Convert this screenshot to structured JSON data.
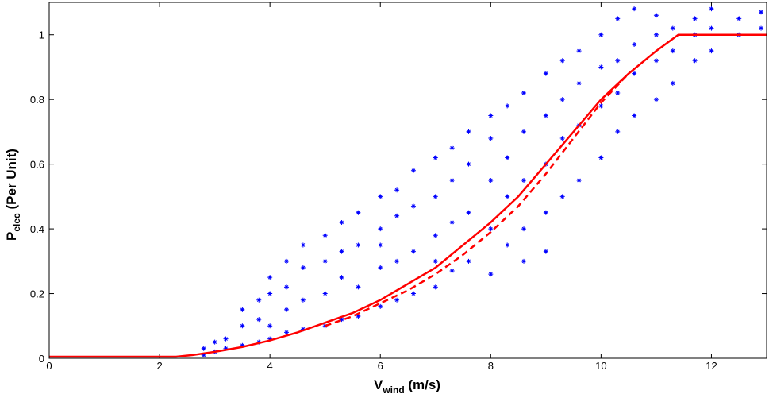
{
  "chart_data": {
    "type": "scatter",
    "xlabel": {
      "main": "V",
      "sub": "wind",
      "rest": " (m/s)"
    },
    "ylabel": {
      "main": "P",
      "sub": "elec",
      "rest": " (Per Unit)"
    },
    "xlim": [
      0,
      13
    ],
    "ylim": [
      0,
      1.1
    ],
    "xticks": [
      0,
      2,
      4,
      6,
      8,
      10,
      12
    ],
    "yticks": [
      0,
      0.2,
      0.4,
      0.6,
      0.8,
      1
    ],
    "color": "#0000ff",
    "x": [
      2.8,
      2.8,
      3.0,
      3.0,
      3.2,
      3.2,
      3.5,
      3.5,
      3.5,
      3.8,
      3.8,
      3.8,
      4.0,
      4.0,
      4.0,
      4.0,
      4.3,
      4.3,
      4.3,
      4.3,
      4.6,
      4.6,
      4.6,
      4.6,
      5.0,
      5.0,
      5.0,
      5.0,
      5.3,
      5.3,
      5.3,
      5.3,
      5.6,
      5.6,
      5.6,
      5.6,
      6.0,
      6.0,
      6.0,
      6.0,
      6.0,
      6.3,
      6.3,
      6.3,
      6.3,
      6.6,
      6.6,
      6.6,
      6.6,
      7.0,
      7.0,
      7.0,
      7.0,
      7.0,
      7.3,
      7.3,
      7.3,
      7.3,
      7.6,
      7.6,
      7.6,
      7.6,
      8.0,
      8.0,
      8.0,
      8.0,
      8.0,
      8.3,
      8.3,
      8.3,
      8.3,
      8.6,
      8.6,
      8.6,
      8.6,
      8.6,
      9.0,
      9.0,
      9.0,
      9.0,
      9.0,
      9.3,
      9.3,
      9.3,
      9.3,
      9.6,
      9.6,
      9.6,
      9.6,
      10.0,
      10.0,
      10.0,
      10.0,
      10.3,
      10.3,
      10.3,
      10.3,
      10.6,
      10.6,
      10.6,
      10.6,
      11.0,
      11.0,
      11.0,
      11.0,
      11.3,
      11.3,
      11.3,
      11.7,
      11.7,
      11.7,
      12.0,
      12.0,
      12.0,
      12.5,
      12.5,
      12.9,
      12.9
    ],
    "values": [
      0.01,
      0.03,
      0.02,
      0.05,
      0.03,
      0.06,
      0.04,
      0.1,
      0.15,
      0.05,
      0.12,
      0.18,
      0.06,
      0.1,
      0.2,
      0.25,
      0.08,
      0.15,
      0.3,
      0.22,
      0.09,
      0.18,
      0.28,
      0.35,
      0.1,
      0.2,
      0.3,
      0.38,
      0.12,
      0.25,
      0.33,
      0.42,
      0.13,
      0.22,
      0.35,
      0.45,
      0.16,
      0.28,
      0.4,
      0.5,
      0.35,
      0.18,
      0.3,
      0.44,
      0.52,
      0.2,
      0.33,
      0.47,
      0.58,
      0.22,
      0.38,
      0.5,
      0.62,
      0.3,
      0.27,
      0.42,
      0.55,
      0.65,
      0.3,
      0.45,
      0.6,
      0.7,
      0.26,
      0.4,
      0.55,
      0.68,
      0.75,
      0.35,
      0.5,
      0.62,
      0.78,
      0.4,
      0.55,
      0.7,
      0.82,
      0.3,
      0.45,
      0.6,
      0.75,
      0.88,
      0.33,
      0.5,
      0.68,
      0.8,
      0.92,
      0.55,
      0.72,
      0.85,
      0.95,
      0.62,
      0.78,
      0.9,
      1.0,
      0.7,
      0.82,
      0.92,
      1.05,
      0.75,
      0.88,
      0.97,
      1.08,
      0.8,
      0.92,
      1.0,
      1.06,
      0.85,
      0.95,
      1.02,
      0.92,
      1.0,
      1.05,
      0.95,
      1.02,
      1.08,
      1.0,
      1.05,
      1.02,
      1.07
    ],
    "lines": [
      {
        "style": "solid",
        "color": "#ff0000",
        "x": [
          0,
          2.3,
          2.6,
          3,
          3.5,
          4,
          4.5,
          5,
          5.5,
          6,
          6.5,
          7,
          7.5,
          8,
          8.5,
          9,
          9.5,
          10,
          10.5,
          11,
          11.4,
          13
        ],
        "values": [
          0.005,
          0.005,
          0.01,
          0.02,
          0.035,
          0.055,
          0.08,
          0.11,
          0.14,
          0.18,
          0.23,
          0.28,
          0.35,
          0.42,
          0.5,
          0.6,
          0.7,
          0.8,
          0.88,
          0.95,
          1,
          1
        ]
      },
      {
        "style": "dashed",
        "color": "#ff0000",
        "x": [
          5,
          5.5,
          6,
          6.5,
          7,
          7.5,
          8,
          8.5,
          9,
          9.5,
          10,
          10.5
        ],
        "values": [
          0.1,
          0.13,
          0.17,
          0.21,
          0.26,
          0.32,
          0.39,
          0.47,
          0.57,
          0.68,
          0.79,
          0.88
        ]
      }
    ]
  }
}
